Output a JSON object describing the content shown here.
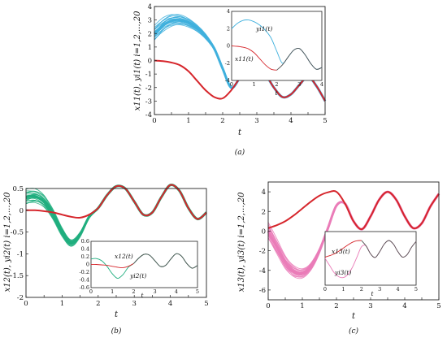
{
  "palette": {
    "leader": "#d6262c",
    "panel_a_followers": "#3fb0dd",
    "panel_b_followers": "#1fae7e",
    "panel_c_followers": "#ea7cb8",
    "inset_dark": "#505050",
    "axis": "#222222"
  },
  "chart_data": [
    {
      "id": "a",
      "type": "line",
      "caption": "(a)",
      "xlabel": "t",
      "ylabel": "x11(t), yi1(t) i=1,2,...,20",
      "xlim": [
        0,
        5
      ],
      "ylim": [
        -4,
        4
      ],
      "xticks": [
        "0",
        "0.5",
        "1",
        "1.5",
        "2",
        "2.5",
        "3",
        "3.5",
        "4",
        "4.5",
        "5"
      ],
      "yticks": [
        "4",
        "3",
        "2",
        "1",
        "0",
        "-1",
        "-2",
        "-3",
        "-4"
      ],
      "x": [
        0,
        0.25,
        0.5,
        0.75,
        1,
        1.25,
        1.5,
        1.75,
        2,
        2.25,
        2.5,
        2.75,
        3,
        3.25,
        3.5,
        3.75,
        4,
        4.25,
        4.5,
        4.75,
        5
      ],
      "series": [
        {
          "role": "leader",
          "values": [
            0,
            -0.05,
            -0.15,
            -0.35,
            -0.8,
            -1.5,
            -2.2,
            -2.7,
            -2.8,
            -2.2,
            -1.3,
            -0.5,
            -0.3,
            -1,
            -2,
            -2.7,
            -2.5,
            -1.8,
            -1.2,
            -1.9,
            -3
          ]
        },
        {
          "role": "followers",
          "count": 20,
          "values": [
            2,
            2.6,
            2.95,
            3,
            2.8,
            2.4,
            1.8,
            0.9,
            -0.6,
            -2,
            -1.3,
            -0.5,
            -0.3,
            -1,
            -2,
            -2.7,
            -2.5,
            -1.8,
            -1.2,
            -1.9,
            -3
          ]
        }
      ],
      "inset": {
        "xlim": [
          0,
          4
        ],
        "ylim": [
          -4,
          4
        ],
        "xticks": [
          "0",
          "1",
          "2",
          "3",
          "4"
        ],
        "yticks": [
          "4",
          "2",
          "0",
          "-2",
          "-4"
        ],
        "xlabel": "t",
        "labels": [
          "yi1(t)",
          "x11(t)"
        ]
      }
    },
    {
      "id": "b",
      "type": "line",
      "caption": "(b)",
      "xlabel": "t",
      "ylabel": "x12(t), yi2(t) i=1,2,...,20",
      "xlim": [
        0,
        5
      ],
      "ylim": [
        -2,
        0.5
      ],
      "xticks": [
        "0",
        "0.5",
        "1",
        "1.5",
        "2",
        "2.5",
        "3",
        "3.5",
        "4",
        "4.5",
        "5"
      ],
      "yticks": [
        "0.5",
        "0",
        "-0.5",
        "-1",
        "-1.5",
        "-2"
      ],
      "x": [
        0,
        0.25,
        0.5,
        0.75,
        1,
        1.25,
        1.5,
        1.75,
        2,
        2.25,
        2.5,
        2.75,
        3,
        3.25,
        3.5,
        3.75,
        4,
        4.25,
        4.5,
        4.75,
        5
      ],
      "series": [
        {
          "role": "leader",
          "values": [
            0,
            0,
            -0.02,
            -0.05,
            -0.1,
            -0.15,
            -0.17,
            -0.1,
            0.05,
            0.35,
            0.55,
            0.5,
            0.2,
            -0.1,
            -0.05,
            0.3,
            0.58,
            0.45,
            0.05,
            -0.2,
            -0.05
          ]
        },
        {
          "role": "followers",
          "count": 20,
          "values": [
            0.3,
            0.32,
            0.2,
            -0.1,
            -0.5,
            -0.75,
            -0.55,
            -0.15,
            0.05,
            0.35,
            0.55,
            0.5,
            0.2,
            -0.1,
            -0.05,
            0.3,
            0.58,
            0.45,
            0.05,
            -0.2,
            -0.05
          ]
        }
      ],
      "inset": {
        "xlim": [
          0,
          5
        ],
        "ylim": [
          -0.6,
          0.6
        ],
        "xticks": [
          "0",
          "1",
          "2",
          "3",
          "4",
          "5"
        ],
        "yticks": [
          "0.6",
          "0.4",
          "0.2",
          "0",
          "-0.2",
          "-0.4",
          "-0.6"
        ],
        "xlabel": "t",
        "labels": [
          "x12(t)",
          "yi2(t)"
        ]
      }
    },
    {
      "id": "c",
      "type": "line",
      "caption": "(c)",
      "xlabel": "t",
      "ylabel": "x13(t), yi3(t) i=1,2,...,20",
      "xlim": [
        0,
        5
      ],
      "ylim": [
        -7,
        5
      ],
      "xticks": [
        "0",
        "0.5",
        "1",
        "1.5",
        "2",
        "2.5",
        "3",
        "3.5",
        "4",
        "4.5",
        "5"
      ],
      "yticks": [
        "4",
        "2",
        "0",
        "-2",
        "-4",
        "-6"
      ],
      "x": [
        0,
        0.25,
        0.5,
        0.75,
        1,
        1.25,
        1.5,
        1.75,
        2,
        2.25,
        2.5,
        2.75,
        3,
        3.25,
        3.5,
        3.75,
        4,
        4.25,
        4.5,
        4.75,
        5
      ],
      "series": [
        {
          "role": "leader",
          "values": [
            0.3,
            0.6,
            1,
            1.6,
            2.3,
            3,
            3.6,
            3.95,
            4,
            2.8,
            1,
            0.2,
            1.5,
            3.2,
            4,
            3.2,
            1.5,
            0.3,
            0.8,
            2.5,
            3.8
          ]
        },
        {
          "role": "followers",
          "count": 20,
          "values": [
            0,
            -1.6,
            -3.2,
            -4.1,
            -4.3,
            -3.6,
            -2,
            0.3,
            2.6,
            2.8,
            1,
            0.2,
            1.5,
            3.2,
            4,
            3.2,
            1.5,
            0.3,
            0.8,
            2.5,
            3.8
          ]
        }
      ],
      "inset": {
        "xlim": [
          0,
          5
        ],
        "ylim": [
          -5,
          5
        ],
        "xticks": [
          "0",
          "1",
          "2",
          "3",
          "4",
          "5"
        ],
        "yticks": [],
        "xlabel": "t",
        "labels": [
          "x13(t)",
          "yi3(t)"
        ]
      }
    }
  ]
}
